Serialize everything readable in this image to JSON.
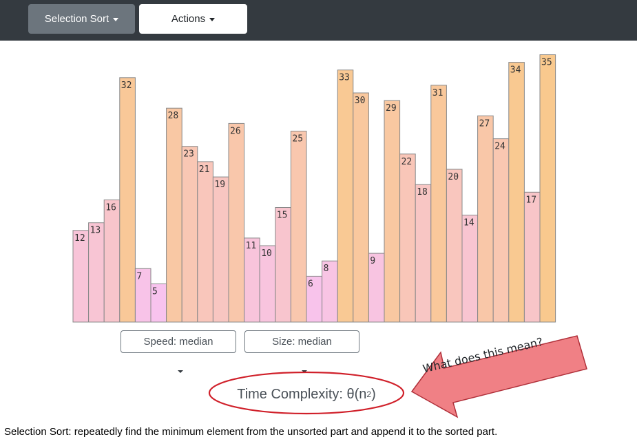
{
  "navbar": {
    "algorithm_label": "Selection Sort",
    "actions_label": "Actions"
  },
  "chart_data": {
    "type": "bar",
    "values": [
      12,
      13,
      16,
      32,
      7,
      5,
      28,
      23,
      21,
      19,
      26,
      11,
      10,
      15,
      25,
      6,
      8,
      33,
      30,
      9,
      29,
      22,
      18,
      31,
      20,
      14,
      27,
      24,
      34,
      17,
      35
    ],
    "color_low": "#f8c3ee",
    "color_high": "#f9c98e",
    "bar_stroke": "#888888"
  },
  "controls": {
    "speed_label": "Speed: median",
    "size_label": "Size: median"
  },
  "complexity": {
    "prefix": "Time Complexity: θ(n",
    "exponent": "2",
    "suffix": ")"
  },
  "annotation": {
    "callout_text": "What does this mean?",
    "arrow_fill": "#f08085",
    "circle_stroke": "#d0202a"
  },
  "description": "Selection Sort: repeatedly find the minimum element from the unsorted part and append it to the sorted part."
}
